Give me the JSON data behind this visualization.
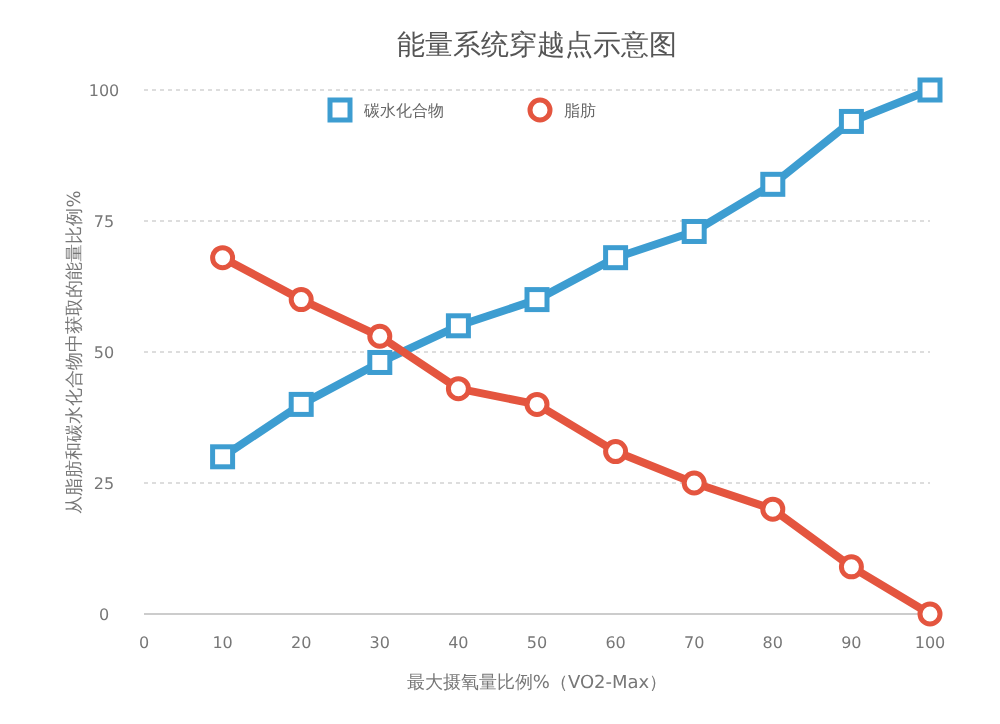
{
  "chart_data": {
    "type": "line",
    "title": "能量系统穿越点示意图",
    "xlabel": "最大摄氧量比例%（VO2-Max）",
    "ylabel": "从脂肪和碳水化合物中获取的能量比例%",
    "x": [
      10,
      20,
      30,
      40,
      50,
      60,
      70,
      80,
      90,
      100
    ],
    "series": [
      {
        "name": "碳水化合物",
        "color": "#3d9dd1",
        "marker": "square",
        "values": [
          30,
          40,
          48,
          55,
          60,
          68,
          73,
          82,
          94,
          100
        ]
      },
      {
        "name": "脂肪",
        "color": "#e4553f",
        "marker": "circle",
        "values": [
          68,
          60,
          53,
          43,
          40,
          31,
          25,
          20,
          9,
          0
        ]
      }
    ],
    "xlim": [
      0,
      100
    ],
    "xticks": [
      0,
      10,
      20,
      30,
      40,
      50,
      60,
      70,
      80,
      90,
      100
    ],
    "ylim": [
      0,
      100
    ],
    "yticks": [
      0,
      25,
      50,
      75,
      100
    ],
    "grid": "y",
    "legend": "top",
    "line_style": "solid"
  }
}
